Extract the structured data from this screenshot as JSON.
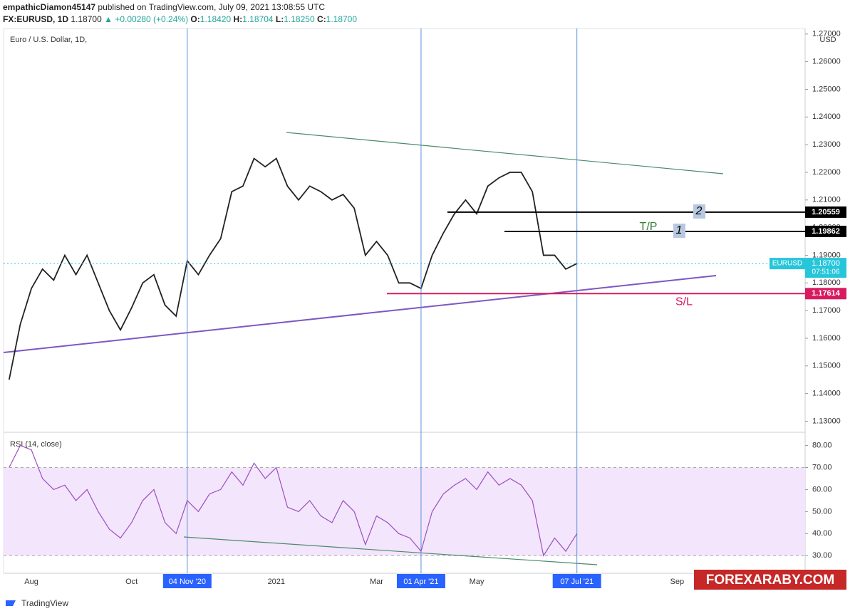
{
  "header": {
    "user": "empathicDiamon45147",
    "published": "published on TradingView.com, July 09, 2021 13:08:55 UTC",
    "symbol": "FX:EURUSD, 1D",
    "last": "1.18700",
    "arrow": "▲",
    "change": "+0.00280 (+0.24%)",
    "ohlc": [
      [
        "O:",
        "1.18420"
      ],
      [
        "H:",
        "1.18704"
      ],
      [
        "L:",
        "1.18250"
      ],
      [
        "C:",
        "1.18700"
      ]
    ]
  },
  "chart_data": [
    {
      "type": "line",
      "title": "Euro / U.S. Dollar, 1D,",
      "currency": "USD",
      "color": "#222222",
      "categories": [
        null,
        null,
        "Aug",
        null,
        null,
        null,
        null,
        null,
        null,
        null,
        null,
        "Oct",
        null,
        null,
        null,
        null,
        "04 Nov '20",
        null,
        null,
        null,
        null,
        null,
        null,
        null,
        "2021",
        null,
        null,
        null,
        null,
        null,
        null,
        null,
        null,
        "Mar",
        null,
        null,
        null,
        "01 Apr '21",
        null,
        null,
        null,
        null,
        "May",
        null,
        null,
        null,
        null,
        null,
        null,
        null,
        null,
        "07 Jul '21",
        null,
        null,
        null,
        null,
        null,
        null,
        null,
        null,
        "Sep",
        null,
        null,
        null,
        null,
        null,
        null,
        null,
        null,
        null,
        null,
        null
      ],
      "highlighted": [
        "04 Nov '20",
        "01 Apr '21",
        "07 Jul '21"
      ],
      "values": [
        1.145,
        1.165,
        1.178,
        1.185,
        1.181,
        1.19,
        1.183,
        1.19,
        1.18,
        1.17,
        1.163,
        1.171,
        1.18,
        1.183,
        1.172,
        1.168,
        1.188,
        1.183,
        1.19,
        1.196,
        1.213,
        1.215,
        1.225,
        1.222,
        1.225,
        1.215,
        1.21,
        1.215,
        1.213,
        1.21,
        1.212,
        1.207,
        1.19,
        1.195,
        1.19,
        1.18,
        1.18,
        1.178,
        1.19,
        1.198,
        1.205,
        1.21,
        1.205,
        1.215,
        1.218,
        1.22,
        1.22,
        1.213,
        1.19,
        1.19,
        1.185,
        1.187,
        null,
        null,
        null,
        null,
        null,
        null,
        null,
        null,
        null,
        null,
        null,
        null,
        null,
        null,
        null,
        null,
        null,
        null,
        null,
        null
      ],
      "ylim": [
        1.126,
        1.272
      ],
      "yticks": [
        {
          "value": 1.13,
          "label": "1.13000"
        },
        {
          "value": 1.14,
          "label": "1.14000"
        },
        {
          "value": 1.15,
          "label": "1.15000"
        },
        {
          "value": 1.16,
          "label": "1.16000"
        },
        {
          "value": 1.17,
          "label": "1.17000"
        },
        {
          "value": 1.18,
          "label": "1.18000"
        },
        {
          "value": 1.19,
          "label": "1.19000"
        },
        {
          "value": 1.2,
          "label": "1.20000"
        },
        {
          "value": 1.21,
          "label": "1.21000"
        },
        {
          "value": 1.22,
          "label": "1.22000"
        },
        {
          "value": 1.23,
          "label": "1.23000"
        },
        {
          "value": 1.24,
          "label": "1.24000"
        },
        {
          "value": 1.25,
          "label": "1.25000"
        },
        {
          "value": 1.26,
          "label": "1.26000"
        },
        {
          "value": 1.27,
          "label": "1.27000"
        }
      ],
      "levels": [
        {
          "value": 1.20559,
          "label": "1.20559",
          "color": "#000000",
          "note": "2"
        },
        {
          "value": 1.19862,
          "label": "1.19862",
          "color": "#000000",
          "note": "1",
          "text": "T/P"
        },
        {
          "value": 1.17614,
          "label": "1.17614",
          "color": "#d81b60",
          "text": "S/L"
        }
      ],
      "current": {
        "symbol": "EURUSD",
        "value": 1.187,
        "label": "1.18700",
        "countdown": "07:51:06",
        "color": "#26c6da"
      }
    },
    {
      "type": "line",
      "title": "RSI (14, close)",
      "color": "#9c4fc2",
      "values": [
        70,
        80,
        78,
        65,
        60,
        62,
        55,
        60,
        50,
        42,
        38,
        45,
        55,
        60,
        45,
        40,
        55,
        50,
        58,
        60,
        68,
        62,
        72,
        65,
        70,
        52,
        50,
        55,
        48,
        45,
        55,
        50,
        35,
        48,
        45,
        40,
        38,
        32,
        50,
        58,
        62,
        65,
        60,
        68,
        62,
        65,
        62,
        55,
        30,
        38,
        32,
        40,
        null,
        null,
        null,
        null,
        null,
        null,
        null,
        null,
        null,
        null,
        null,
        null,
        null,
        null,
        null,
        null,
        null,
        null,
        null,
        null
      ],
      "band": [
        30,
        70
      ],
      "band_color": "#f3e5fb",
      "ylim": [
        22,
        86
      ],
      "yticks": [
        {
          "value": 30,
          "label": "30.00"
        },
        {
          "value": 40,
          "label": "40.00"
        },
        {
          "value": 50,
          "label": "50.00"
        },
        {
          "value": 60,
          "label": "60.00"
        },
        {
          "value": 70,
          "label": "70.00"
        },
        {
          "value": 80,
          "label": "80.00"
        }
      ]
    }
  ],
  "watermark": "FOREXARABY.COM",
  "footer": "TradingView"
}
